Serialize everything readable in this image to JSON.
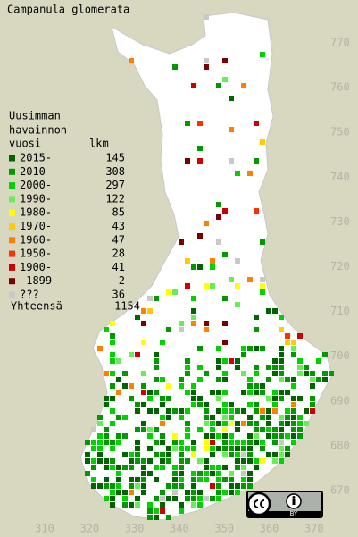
{
  "title": "Campanula glomerata",
  "legend": {
    "heading": [
      "Uusimman",
      "havainnon"
    ],
    "columns": [
      "vuosi",
      "lkm"
    ],
    "entries": [
      {
        "label": "2015-",
        "count": 145,
        "color": "#006400"
      },
      {
        "label": "2010-",
        "count": 308,
        "color": "#009a00"
      },
      {
        "label": "2000-",
        "count": 297,
        "color": "#00d200"
      },
      {
        "label": "1990-",
        "count": 122,
        "color": "#66ee55"
      },
      {
        "label": "1980-",
        "count": 85,
        "color": "#ffff00"
      },
      {
        "label": "1970-",
        "count": 43,
        "color": "#ffcc00"
      },
      {
        "label": "1960-",
        "count": 47,
        "color": "#ff8000"
      },
      {
        "label": "1950-",
        "count": 28,
        "color": "#ff3000"
      },
      {
        "label": "1900-",
        "count": 41,
        "color": "#cc0000"
      },
      {
        "label": "-1899",
        "count": 2,
        "color": "#7a0000"
      },
      {
        "label": "???",
        "count": 36,
        "color": "#c8c8c8"
      }
    ],
    "total_label": "Yhteensä",
    "total": 1154
  },
  "axes": {
    "y_ticks": [
      770,
      760,
      750,
      740,
      730,
      720,
      710,
      700,
      690,
      680,
      670
    ],
    "x_ticks": [
      310,
      320,
      330,
      340,
      350,
      360,
      370
    ]
  },
  "badge": {
    "label": "BY"
  }
}
